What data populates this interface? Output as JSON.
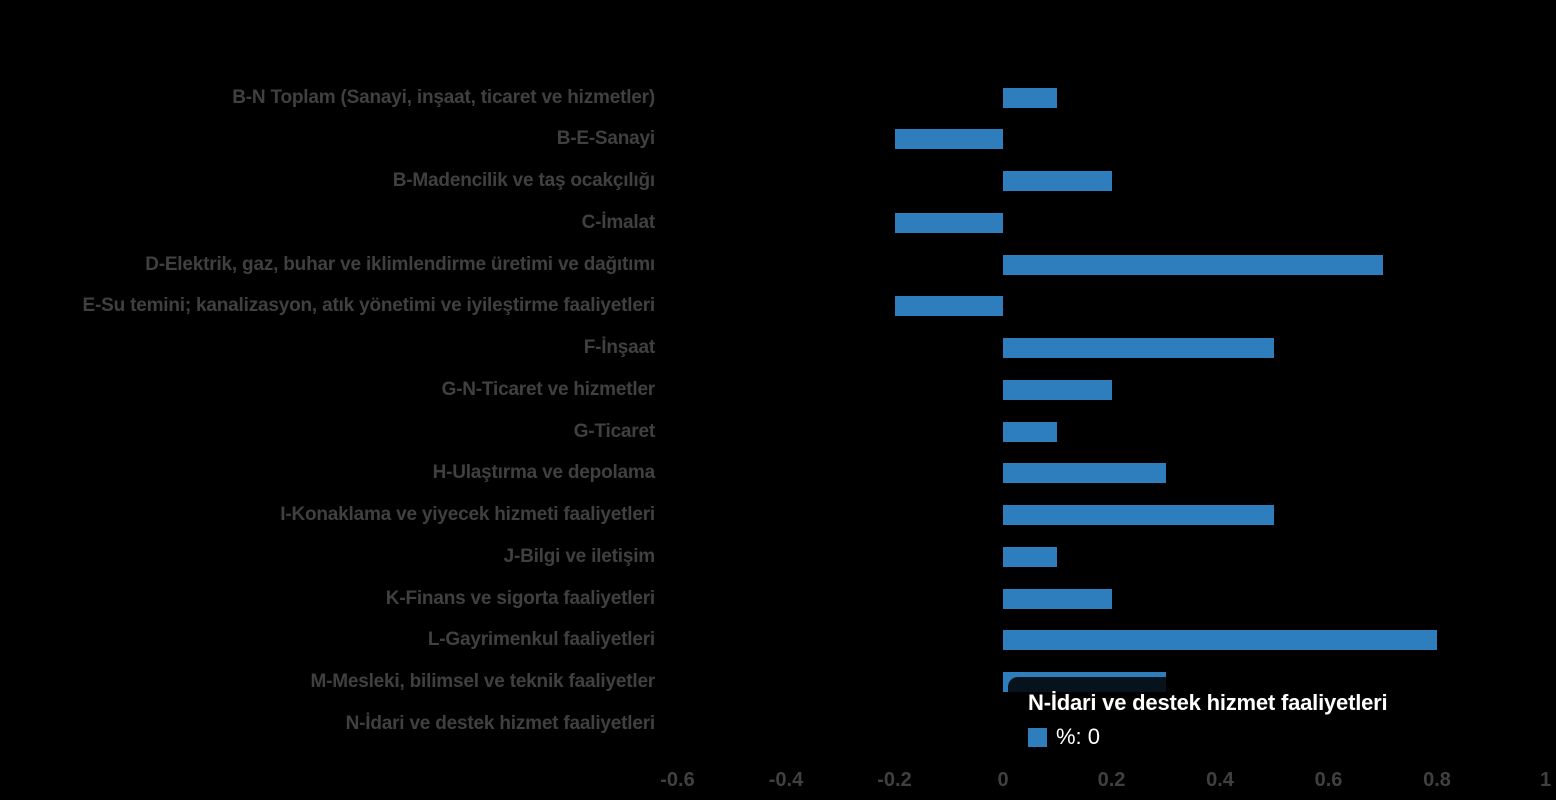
{
  "colors": {
    "background": "#000000",
    "bar": "#2e7dbc",
    "label": "#404040",
    "tooltip_background": "rgba(0,0,0,0.85)",
    "tooltip_text": "#ffffff"
  },
  "chart_data": {
    "type": "bar",
    "orientation": "horizontal",
    "title": "",
    "xlabel": "",
    "ylabel": "",
    "grid": false,
    "legend_position": "none",
    "xlim": [
      -0.64,
      1.02
    ],
    "x_ticks": [
      -0.6,
      -0.4,
      -0.2,
      0,
      0.2,
      0.4,
      0.6,
      0.8,
      1
    ],
    "categories": [
      "B-N Toplam (Sanayi, inşaat, ticaret ve hizmetler)",
      "B-E-Sanayi",
      "B-Madencilik ve taş ocakçılığı",
      "C-İmalat",
      "D-Elektrik, gaz, buhar ve iklimlendirme üretimi ve dağıtımı",
      "E-Su temini; kanalizasyon, atık yönetimi ve iyileştirme faaliyetleri",
      "F-İnşaat",
      "G-N-Ticaret ve hizmetler",
      "G-Ticaret",
      "H-Ulaştırma ve depolama",
      "I-Konaklama ve yiyecek hizmeti faaliyetleri",
      "J-Bilgi ve iletişim",
      "K-Finans ve sigorta faaliyetleri",
      "L-Gayrimenkul faaliyetleri",
      "M-Mesleki, bilimsel ve teknik faaliyetler",
      "N-İdari ve destek hizmet faaliyetleri"
    ],
    "series": [
      {
        "name": "%",
        "values": [
          0.1,
          -0.2,
          0.2,
          -0.2,
          0.7,
          -0.2,
          0.5,
          0.2,
          0.1,
          0.3,
          0.5,
          0.1,
          0.2,
          0.8,
          0.3,
          0
        ]
      }
    ]
  },
  "tooltip": {
    "title": "N-İdari ve destek hizmet faaliyetleri",
    "series_name": "%",
    "value": "0",
    "label": "%: 0"
  }
}
